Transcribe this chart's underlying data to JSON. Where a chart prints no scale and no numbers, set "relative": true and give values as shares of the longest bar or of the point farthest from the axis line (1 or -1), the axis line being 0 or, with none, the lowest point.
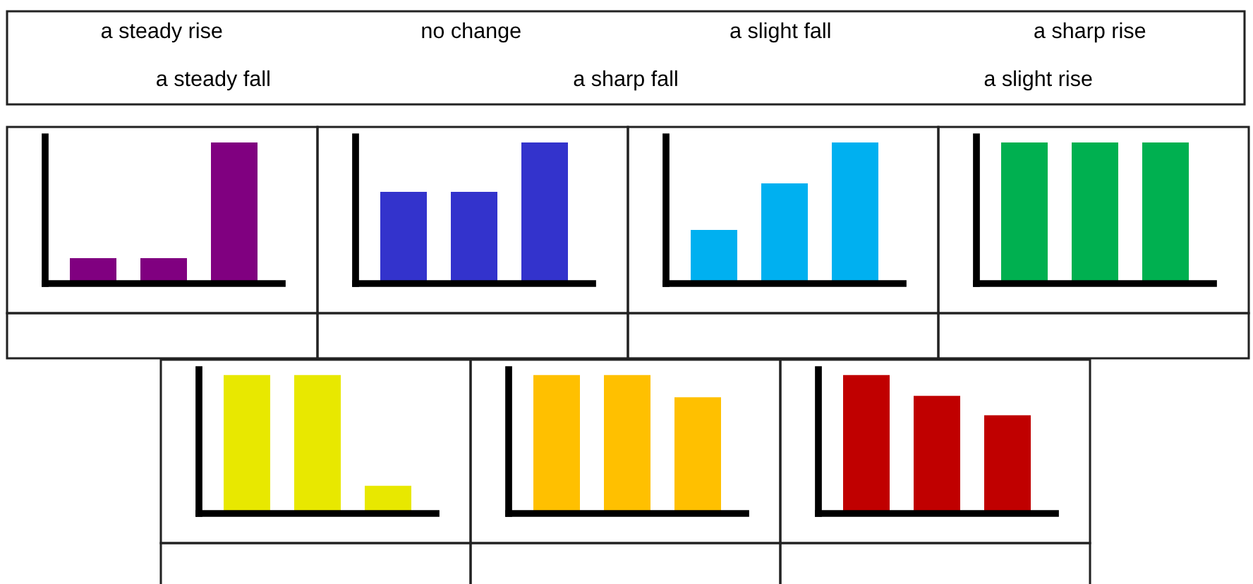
{
  "chart_data": [
    {
      "type": "other",
      "annotations": [
        "a steady rise",
        "no change",
        "a slight fall",
        "a sharp rise",
        "a steady fall",
        "a sharp fall",
        "a slight rise"
      ]
    },
    {
      "type": "bar",
      "categories": [
        null,
        null,
        null
      ],
      "values": [
        0.18,
        0.18,
        1
      ],
      "color": "#800080",
      "relative": true
    },
    {
      "type": "bar",
      "categories": [
        null,
        null,
        null
      ],
      "values": [
        0.65,
        0.65,
        1
      ],
      "color": "#3333cc",
      "relative": true
    },
    {
      "type": "bar",
      "categories": [
        null,
        null,
        null
      ],
      "values": [
        0.38,
        0.71,
        1
      ],
      "color": "#00b0f0",
      "relative": true
    },
    {
      "type": "bar",
      "categories": [
        null,
        null,
        null
      ],
      "values": [
        1,
        1,
        1
      ],
      "color": "#00b050",
      "relative": true
    },
    {
      "type": "bar",
      "categories": [
        null,
        null,
        null
      ],
      "values": [
        1,
        1,
        0.2
      ],
      "color": "#e8e800",
      "relative": true
    },
    {
      "type": "bar",
      "categories": [
        null,
        null,
        null
      ],
      "values": [
        1,
        1,
        0.84
      ],
      "color": "#ffc000",
      "relative": true
    },
    {
      "type": "bar",
      "categories": [
        null,
        null,
        null
      ],
      "values": [
        1,
        0.85,
        0.71
      ],
      "color": "#c00000",
      "relative": true
    }
  ]
}
